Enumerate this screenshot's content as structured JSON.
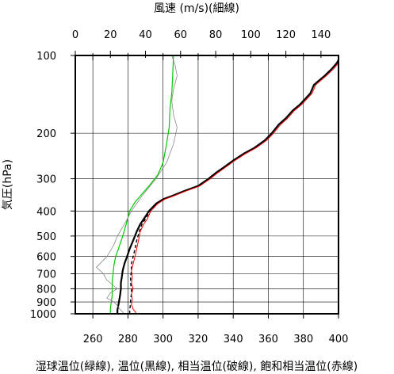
{
  "chart_data": {
    "type": "line",
    "title": "",
    "top_axis": {
      "label": "風速 (m/s)(細線)",
      "range": [
        0,
        150
      ],
      "ticks": [
        0,
        20,
        40,
        60,
        80,
        100,
        120,
        140
      ]
    },
    "bottom_axis": {
      "label": "湿球温位(緑線), 温位(黒線), 相当温位(破線), 飽和相当温位(赤線)",
      "range": [
        250,
        400
      ],
      "ticks": [
        260,
        280,
        300,
        320,
        340,
        360,
        380,
        400
      ]
    },
    "y_axis": {
      "label": "気圧(hPa)",
      "scale": "log",
      "range": [
        100,
        1050
      ],
      "ticks": [
        100,
        200,
        300,
        400,
        500,
        600,
        700,
        800,
        900,
        1000
      ]
    },
    "grid": true,
    "colors": {
      "wet_bulb_potential_temp": "#00cc00",
      "potential_temp": "#000000",
      "equivalent_potential_temp": "#000000",
      "saturated_equivalent_potential_temp": "#ee0000",
      "wind_speed": "#888888"
    },
    "series": [
      {
        "key": "wet_bulb_potential_temp",
        "axis": "bottom",
        "points": [
          [
            270,
            1000
          ],
          [
            270,
            950
          ],
          [
            270.5,
            900
          ],
          [
            271,
            850
          ],
          [
            271,
            800
          ],
          [
            271,
            750
          ],
          [
            271.5,
            700
          ],
          [
            272,
            650
          ],
          [
            273,
            600
          ],
          [
            275,
            550
          ],
          [
            277,
            500
          ],
          [
            279,
            450
          ],
          [
            281,
            400
          ],
          [
            284,
            370
          ],
          [
            287,
            350
          ],
          [
            292,
            320
          ],
          [
            297,
            290
          ],
          [
            300,
            260
          ],
          [
            302,
            220
          ],
          [
            303.5,
            190
          ],
          [
            304,
            160
          ],
          [
            305,
            140
          ],
          [
            305.5,
            120
          ],
          [
            306,
            100
          ]
        ]
      },
      {
        "key": "potential_temp",
        "axis": "bottom",
        "points": [
          [
            274,
            1000
          ],
          [
            274,
            970
          ],
          [
            274.5,
            930
          ],
          [
            275,
            890
          ],
          [
            275.5,
            850
          ],
          [
            276,
            800
          ],
          [
            276,
            760
          ],
          [
            276.5,
            720
          ],
          [
            277,
            680
          ],
          [
            278,
            640
          ],
          [
            279.5,
            600
          ],
          [
            281,
            560
          ],
          [
            283,
            520
          ],
          [
            285,
            480
          ],
          [
            287,
            450
          ],
          [
            289,
            430
          ],
          [
            292,
            400
          ],
          [
            296,
            375
          ],
          [
            300,
            360
          ],
          [
            305,
            350
          ],
          [
            312,
            335
          ],
          [
            320,
            320
          ],
          [
            326,
            300
          ],
          [
            330,
            285
          ],
          [
            335,
            270
          ],
          [
            340,
            255
          ],
          [
            346,
            240
          ],
          [
            352,
            228
          ],
          [
            358,
            213
          ],
          [
            362,
            200
          ],
          [
            366,
            185
          ],
          [
            370,
            175
          ],
          [
            374,
            163
          ],
          [
            378,
            155
          ],
          [
            384,
            140
          ],
          [
            386,
            130
          ],
          [
            392,
            120
          ],
          [
            396,
            113
          ],
          [
            399,
            107
          ],
          [
            400,
            104
          ]
        ]
      },
      {
        "key": "equivalent_potential_temp",
        "axis": "bottom",
        "dashed": true,
        "points": [
          [
            281,
            1000
          ],
          [
            281,
            960
          ],
          [
            281.5,
            920
          ],
          [
            281.5,
            880
          ],
          [
            282,
            840
          ],
          [
            282,
            800
          ],
          [
            281.5,
            760
          ],
          [
            281.5,
            720
          ],
          [
            282,
            680
          ],
          [
            282,
            640
          ],
          [
            283,
            600
          ],
          [
            284,
            560
          ],
          [
            285,
            520
          ],
          [
            286.5,
            480
          ],
          [
            288,
            450
          ],
          [
            290,
            430
          ],
          [
            292.5,
            400
          ],
          [
            296,
            375
          ],
          [
            300,
            360
          ],
          [
            305,
            350
          ],
          [
            312,
            335
          ],
          [
            320,
            320
          ],
          [
            326,
            300
          ],
          [
            330,
            285
          ],
          [
            335,
            270
          ],
          [
            340,
            255
          ],
          [
            346,
            240
          ],
          [
            352,
            228
          ],
          [
            358,
            213
          ],
          [
            362,
            200
          ],
          [
            366,
            185
          ],
          [
            370,
            175
          ],
          [
            374,
            163
          ],
          [
            378,
            155
          ],
          [
            384,
            140
          ],
          [
            386,
            130
          ],
          [
            392,
            120
          ],
          [
            396,
            113
          ],
          [
            399,
            107
          ],
          [
            400,
            104
          ]
        ]
      },
      {
        "key": "saturated_equivalent_potential_temp",
        "axis": "bottom",
        "points": [
          [
            285,
            1000
          ],
          [
            283,
            960
          ],
          [
            282,
            920
          ],
          [
            282.5,
            880
          ],
          [
            282,
            840
          ],
          [
            283,
            800
          ],
          [
            282,
            760
          ],
          [
            282.5,
            720
          ],
          [
            282,
            680
          ],
          [
            283,
            640
          ],
          [
            284,
            600
          ],
          [
            285,
            560
          ],
          [
            286,
            520
          ],
          [
            287,
            480
          ],
          [
            289,
            450
          ],
          [
            291,
            430
          ],
          [
            293,
            400
          ],
          [
            297,
            375
          ],
          [
            301,
            360
          ],
          [
            306,
            350
          ],
          [
            313,
            335
          ],
          [
            321,
            320
          ],
          [
            327,
            300
          ],
          [
            331,
            285
          ],
          [
            336,
            270
          ],
          [
            341,
            255
          ],
          [
            347,
            240
          ],
          [
            353,
            228
          ],
          [
            359,
            213
          ],
          [
            363,
            200
          ],
          [
            367,
            185
          ],
          [
            371,
            175
          ],
          [
            375,
            163
          ],
          [
            379,
            155
          ],
          [
            385,
            140
          ],
          [
            387,
            130
          ],
          [
            393,
            120
          ],
          [
            397,
            113
          ],
          [
            400,
            107
          ]
        ]
      },
      {
        "key": "wind_speed",
        "axis": "top",
        "points": [
          [
            28,
            1000
          ],
          [
            26,
            970
          ],
          [
            24,
            930
          ],
          [
            22,
            900
          ],
          [
            18,
            870
          ],
          [
            20,
            830
          ],
          [
            24,
            800
          ],
          [
            21,
            770
          ],
          [
            18,
            740
          ],
          [
            16,
            700
          ],
          [
            12,
            660
          ],
          [
            14,
            640
          ],
          [
            16,
            620
          ],
          [
            18,
            600
          ],
          [
            20,
            570
          ],
          [
            22,
            540
          ],
          [
            24,
            500
          ],
          [
            28,
            450
          ],
          [
            32,
            400
          ],
          [
            38,
            350
          ],
          [
            46,
            300
          ],
          [
            52,
            260
          ],
          [
            56,
            220
          ],
          [
            58,
            190
          ],
          [
            56,
            170
          ],
          [
            55,
            150
          ],
          [
            56,
            135
          ],
          [
            58,
            120
          ],
          [
            57,
            110
          ],
          [
            55,
            100
          ]
        ]
      }
    ]
  }
}
